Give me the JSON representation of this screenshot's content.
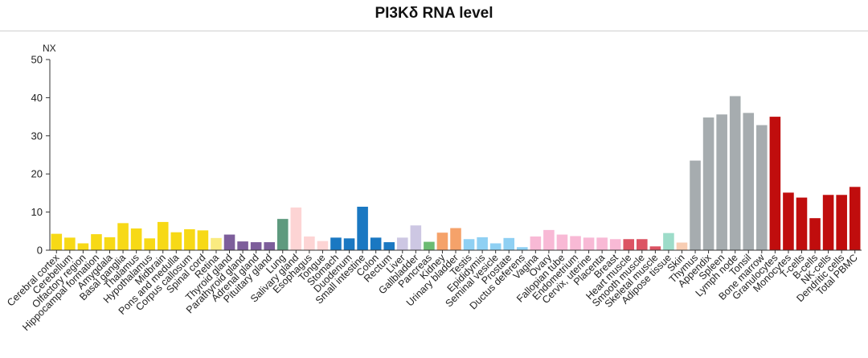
{
  "chart_data": {
    "type": "bar",
    "title": "PI3Kδ RNA level",
    "ylabel": "NX",
    "xlabel": "",
    "ylim": [
      0,
      50
    ],
    "yticks": [
      0,
      10,
      20,
      30,
      40,
      50
    ],
    "categories": [
      "Cerebral cortex",
      "Cerebellum",
      "Olfactory region",
      "Hippocampal formation",
      "Amygdala",
      "Basal ganglia",
      "Thalamus",
      "Hypothalamus",
      "Midbrain",
      "Pons and medulla",
      "Corpus callosum",
      "Spinal cord",
      "Retina",
      "Thyroid gland",
      "Parathyroid gland",
      "Adrenal gland",
      "Pituitary gland",
      "Lung",
      "Salivary gland",
      "Esophagus",
      "Tongue",
      "Stomach",
      "Duodenum",
      "Small intestine",
      "Colon",
      "Rectum",
      "Liver",
      "Gallbladder",
      "Pancreas",
      "Kidney",
      "Urinary bladder",
      "Testis",
      "Epididymis",
      "Seminal vesicle",
      "Prostate",
      "Ductus deferens",
      "Vagina",
      "Ovary",
      "Fallopian tube",
      "Endometrium",
      "Cervix, uterine",
      "Placenta",
      "Breast",
      "Heart muscle",
      "Smooth muscle",
      "Skeletal muscle",
      "Adipose tissue",
      "Skin",
      "Thymus",
      "Appendix",
      "Spleen",
      "Lymph node",
      "Tonsil",
      "Bone marrow",
      "Granulocytes",
      "Monocytes",
      "T-cells",
      "B-cells",
      "NK-cells",
      "Dendritic cells",
      "Total PBMC"
    ],
    "values": [
      4.3,
      3.3,
      1.8,
      4.2,
      3.4,
      7.1,
      5.7,
      3.1,
      7.4,
      4.7,
      5.5,
      5.2,
      3.2,
      4.1,
      2.3,
      2.1,
      2.1,
      8.2,
      11.2,
      3.6,
      2.4,
      3.3,
      3.1,
      11.4,
      3.3,
      2.1,
      3.3,
      6.5,
      2.2,
      4.6,
      5.8,
      2.9,
      3.4,
      1.8,
      3.2,
      0.8,
      3.6,
      5.3,
      4.1,
      3.7,
      3.3,
      3.3,
      2.9,
      2.9,
      2.9,
      1.0,
      4.5,
      2.0,
      23.5,
      34.8,
      35.6,
      40.4,
      36.0,
      32.8,
      35.0,
      15.1,
      13.8,
      8.4,
      14.5,
      14.5,
      16.6
    ],
    "colors": [
      "#f7d916",
      "#f7d916",
      "#f7d916",
      "#f7d916",
      "#f7d916",
      "#f7d916",
      "#f7d916",
      "#f7d916",
      "#f7d916",
      "#f7d916",
      "#f7d916",
      "#f7d916",
      "#faeb80",
      "#7d5e9b",
      "#7d5e9b",
      "#7d5e9b",
      "#7d5e9b",
      "#5e9a7e",
      "#fdd4d4",
      "#fdd4d4",
      "#fdd4d4",
      "#1a78c2",
      "#1a78c2",
      "#1a78c2",
      "#1a78c2",
      "#1a78c2",
      "#cdc7e3",
      "#cdc7e3",
      "#6cbb72",
      "#f5a26a",
      "#f5a26a",
      "#8fd0f3",
      "#8fd0f3",
      "#8fd0f3",
      "#8fd0f3",
      "#8fd0f3",
      "#f8b9d5",
      "#f8b9d5",
      "#f8b9d5",
      "#f8b9d5",
      "#f8b9d5",
      "#f8b9d5",
      "#f8b9d5",
      "#dc5363",
      "#dc5363",
      "#dc5363",
      "#9ddcc9",
      "#f8cdb3",
      "#a6acaf",
      "#a6acaf",
      "#a6acaf",
      "#a6acaf",
      "#a6acaf",
      "#a6acaf",
      "#c00d0d",
      "#c00d0d",
      "#c00d0d",
      "#c00d0d",
      "#c00d0d",
      "#c00d0d",
      "#c00d0d"
    ],
    "grid": false,
    "legend": "none"
  }
}
